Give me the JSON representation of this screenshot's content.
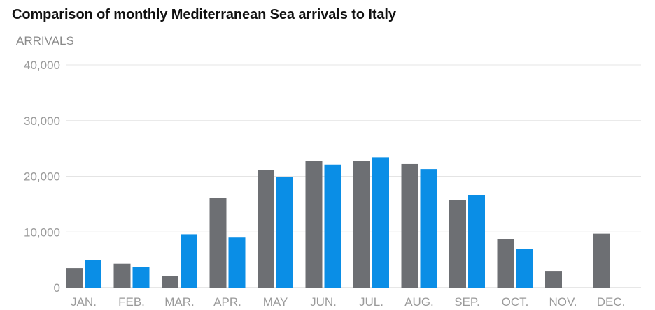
{
  "chart_data": {
    "type": "bar",
    "title": "Comparison of monthly Mediterranean Sea arrivals to Italy",
    "ylabel": "ARRIVALS",
    "xlabel": "",
    "categories": [
      "JAN.",
      "FEB.",
      "MAR.",
      "APR.",
      "MAY",
      "JUN.",
      "JUL.",
      "AUG.",
      "SEP.",
      "OCT.",
      "NOV.",
      "DEC."
    ],
    "series": [
      {
        "values": [
          3500,
          4300,
          2100,
          16100,
          21100,
          22800,
          22800,
          22200,
          15700,
          8700,
          3000,
          9700
        ],
        "color": "#6d6f73"
      },
      {
        "values": [
          4900,
          3700,
          9600,
          9000,
          19900,
          22100,
          23400,
          21300,
          16600,
          7000,
          null,
          null
        ],
        "color": "#0a8ee6"
      }
    ],
    "ylim": [
      0,
      40000
    ],
    "yticks": [
      "0",
      "10,000",
      "20,000",
      "30,000",
      "40,000"
    ],
    "ytick_values": [
      0,
      10000,
      20000,
      30000,
      40000
    ],
    "grid": true,
    "legend": "none"
  }
}
